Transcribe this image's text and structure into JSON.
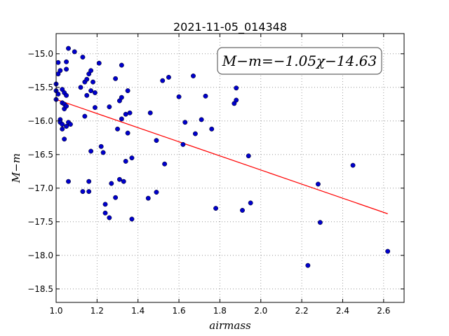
{
  "chart_data": {
    "type": "scatter",
    "title": "2021-11-05_014348",
    "xlabel": "airmass",
    "ylabel": "M−m",
    "xlim": [
      1.0,
      2.7
    ],
    "ylim": [
      -14.7,
      -18.7
    ],
    "y_inverted": true,
    "grid": true,
    "x_ticks": [
      "1.0",
      "1.2",
      "1.4",
      "1.6",
      "1.8",
      "2.0",
      "2.2",
      "2.4",
      "2.6"
    ],
    "y_ticks": [
      "−15.0",
      "−15.5",
      "−16.0",
      "−16.5",
      "−17.0",
      "−17.5",
      "−18.0",
      "−18.5"
    ],
    "annotation": "M−m=−1.05χ−14.63",
    "fit_line": {
      "slope": -1.05,
      "intercept": -14.63,
      "x_range": [
        1.0,
        2.62
      ],
      "color": "#ff0000"
    },
    "marker_color": "#0000cc",
    "points": [
      [
        1.0,
        -15.45
      ],
      [
        1.0,
        -15.55
      ],
      [
        1.0,
        -15.68
      ],
      [
        1.01,
        -15.13
      ],
      [
        1.01,
        -15.3
      ],
      [
        1.01,
        -15.6
      ],
      [
        1.02,
        -15.25
      ],
      [
        1.02,
        -15.98
      ],
      [
        1.02,
        -16.02
      ],
      [
        1.03,
        -15.53
      ],
      [
        1.03,
        -15.73
      ],
      [
        1.03,
        -16.05
      ],
      [
        1.03,
        -16.12
      ],
      [
        1.04,
        -15.75
      ],
      [
        1.04,
        -15.82
      ],
      [
        1.04,
        -16.27
      ],
      [
        1.04,
        -15.58
      ],
      [
        1.05,
        -15.12
      ],
      [
        1.05,
        -15.23
      ],
      [
        1.05,
        -15.62
      ],
      [
        1.05,
        -15.78
      ],
      [
        1.05,
        -16.08
      ],
      [
        1.06,
        -16.02
      ],
      [
        1.06,
        -14.92
      ],
      [
        1.06,
        -16.9
      ],
      [
        1.07,
        -16.05
      ],
      [
        1.09,
        -14.97
      ],
      [
        1.12,
        -15.5
      ],
      [
        1.13,
        -15.05
      ],
      [
        1.13,
        -17.05
      ],
      [
        1.14,
        -15.42
      ],
      [
        1.14,
        -15.93
      ],
      [
        1.15,
        -15.38
      ],
      [
        1.15,
        -15.62
      ],
      [
        1.16,
        -15.3
      ],
      [
        1.16,
        -16.9
      ],
      [
        1.16,
        -17.05
      ],
      [
        1.17,
        -15.25
      ],
      [
        1.17,
        -15.55
      ],
      [
        1.17,
        -16.45
      ],
      [
        1.18,
        -15.42
      ],
      [
        1.19,
        -15.58
      ],
      [
        1.19,
        -15.8
      ],
      [
        1.21,
        -15.14
      ],
      [
        1.22,
        -16.38
      ],
      [
        1.23,
        -16.47
      ],
      [
        1.24,
        -17.24
      ],
      [
        1.24,
        -17.37
      ],
      [
        1.26,
        -17.44
      ],
      [
        1.26,
        -15.79
      ],
      [
        1.27,
        -16.93
      ],
      [
        1.29,
        -15.37
      ],
      [
        1.29,
        -17.14
      ],
      [
        1.3,
        -16.12
      ],
      [
        1.31,
        -15.7
      ],
      [
        1.31,
        -16.87
      ],
      [
        1.32,
        -15.17
      ],
      [
        1.32,
        -15.65
      ],
      [
        1.32,
        -15.97
      ],
      [
        1.33,
        -16.9
      ],
      [
        1.34,
        -16.6
      ],
      [
        1.34,
        -15.9
      ],
      [
        1.35,
        -16.18
      ],
      [
        1.35,
        -15.55
      ],
      [
        1.36,
        -15.88
      ],
      [
        1.37,
        -16.55
      ],
      [
        1.37,
        -17.46
      ],
      [
        1.45,
        -17.15
      ],
      [
        1.46,
        -15.88
      ],
      [
        1.49,
        -16.29
      ],
      [
        1.49,
        -17.06
      ],
      [
        1.52,
        -15.4
      ],
      [
        1.53,
        -16.64
      ],
      [
        1.55,
        -15.35
      ],
      [
        1.6,
        -15.64
      ],
      [
        1.62,
        -16.35
      ],
      [
        1.63,
        -16.02
      ],
      [
        1.67,
        -15.33
      ],
      [
        1.68,
        -16.19
      ],
      [
        1.71,
        -15.98
      ],
      [
        1.73,
        -15.63
      ],
      [
        1.76,
        -16.12
      ],
      [
        1.78,
        -17.3
      ],
      [
        1.87,
        -15.74
      ],
      [
        1.88,
        -15.51
      ],
      [
        1.88,
        -15.69
      ],
      [
        1.91,
        -17.33
      ],
      [
        1.94,
        -16.52
      ],
      [
        1.95,
        -17.22
      ],
      [
        2.23,
        -18.15
      ],
      [
        2.28,
        -16.94
      ],
      [
        2.29,
        -17.51
      ],
      [
        2.45,
        -16.66
      ],
      [
        2.62,
        -17.94
      ]
    ]
  }
}
